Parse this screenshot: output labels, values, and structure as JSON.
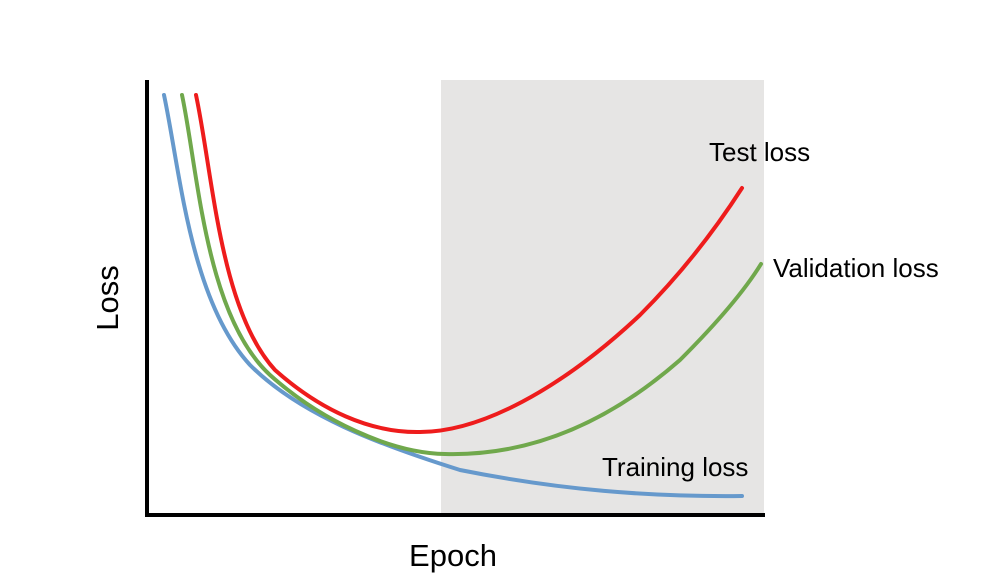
{
  "chart_data": {
    "type": "line",
    "title": "",
    "xlabel": "Epoch",
    "ylabel": "Loss",
    "x_ticks": false,
    "y_ticks": false,
    "grid": false,
    "legend": "none (series labelled inline at curve ends)",
    "shaded_region": {
      "from_fraction": 0.5,
      "to_fraction": 1.0,
      "color": "#e6e5e4"
    },
    "series": [
      {
        "name": "Test loss",
        "color": "#ee1c1c",
        "label_position": "above end of curve",
        "shape": "U-shaped, minimum near middle, rising steeply at end"
      },
      {
        "name": "Validation loss",
        "color": "#70a84c",
        "label_position": "right of end of curve",
        "shape": "U-shaped, minimum slightly right of middle, rising at end"
      },
      {
        "name": "Training loss",
        "color": "#6699cc",
        "label_position": "above end of curve",
        "shape": "monotonically decreasing, flattening out"
      }
    ]
  }
}
